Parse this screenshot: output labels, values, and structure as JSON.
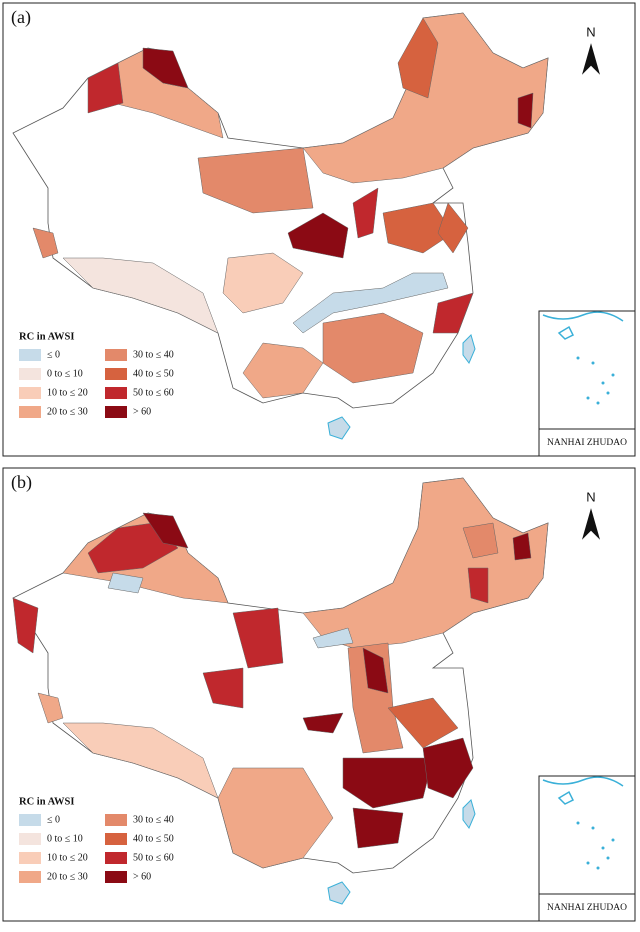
{
  "panels": [
    {
      "label": "(a)",
      "north": "N",
      "inset_label": "NANHAI ZHUDAO",
      "legend": {
        "title": "RC in AWSI",
        "items": [
          {
            "label": "≤ 0",
            "color": "#c6dbe9"
          },
          {
            "label": "0 to ≤ 10",
            "color": "#f4e4de"
          },
          {
            "label": "10 to ≤ 20",
            "color": "#f9cdb8"
          },
          {
            "label": "20 to ≤ 30",
            "color": "#f0a888"
          },
          {
            "label": "30 to ≤ 40",
            "color": "#e3896a"
          },
          {
            "label": "40 to ≤ 50",
            "color": "#d6623f"
          },
          {
            "label": "50 to ≤ 60",
            "color": "#c0282d"
          },
          {
            "label": "> 60",
            "color": "#8b0a14"
          }
        ]
      }
    },
    {
      "label": "(b)",
      "north": "N",
      "inset_label": "NANHAI ZHUDAO",
      "legend": {
        "title": "RC in AWSI",
        "items": [
          {
            "label": "≤ 0",
            "color": "#c6dbe9"
          },
          {
            "label": "0 to ≤ 10",
            "color": "#f4e4de"
          },
          {
            "label": "10 to ≤ 20",
            "color": "#f9cdb8"
          },
          {
            "label": "20 to ≤ 30",
            "color": "#f0a888"
          },
          {
            "label": "30 to ≤ 40",
            "color": "#e3896a"
          },
          {
            "label": "40 to ≤ 50",
            "color": "#d6623f"
          },
          {
            "label": "50 to ≤ 60",
            "color": "#c0282d"
          },
          {
            "label": "> 60",
            "color": "#8b0a14"
          }
        ]
      }
    }
  ]
}
